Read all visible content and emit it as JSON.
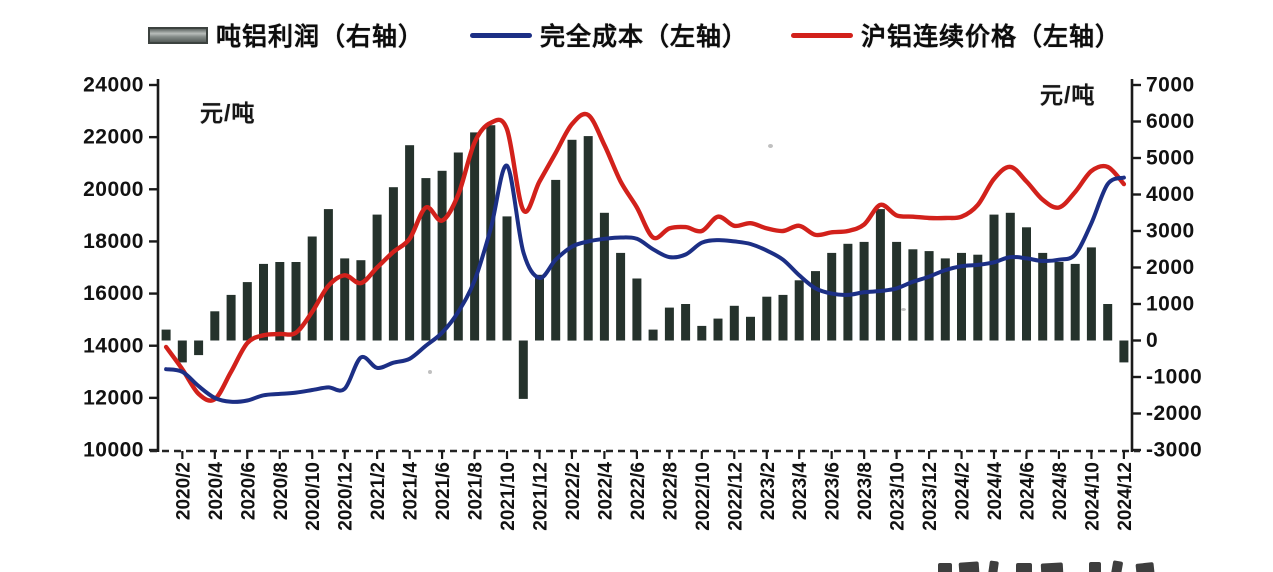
{
  "legend": {
    "items": [
      {
        "label": "吨铝利润（右轴）",
        "type": "bar",
        "color": "#8f9693"
      },
      {
        "label": "完全成本（左轴）",
        "type": "line",
        "color": "#1c2f85"
      },
      {
        "label": "沪铝连续价格（左轴）",
        "type": "line",
        "color": "#d2211b"
      }
    ]
  },
  "chart_data": {
    "type": "bar",
    "subtype": "combo-bar-and-two-lines",
    "title": "",
    "legend_position": "top",
    "grid": false,
    "x": [
      "2020/1",
      "2020/2",
      "2020/3",
      "2020/4",
      "2020/5",
      "2020/6",
      "2020/7",
      "2020/8",
      "2020/9",
      "2020/10",
      "2020/11",
      "2020/12",
      "2021/1",
      "2021/2",
      "2021/3",
      "2021/4",
      "2021/5",
      "2021/6",
      "2021/7",
      "2021/8",
      "2021/9",
      "2021/10",
      "2021/11",
      "2021/12",
      "2022/1",
      "2022/2",
      "2022/3",
      "2022/4",
      "2022/5",
      "2022/6",
      "2022/7",
      "2022/8",
      "2022/9",
      "2022/10",
      "2022/11",
      "2022/12",
      "2023/1",
      "2023/2",
      "2023/3",
      "2023/4",
      "2023/5",
      "2023/6",
      "2023/7",
      "2023/8",
      "2023/9",
      "2023/10",
      "2023/11",
      "2023/12",
      "2024/1",
      "2024/2",
      "2024/3",
      "2024/4",
      "2024/5",
      "2024/6",
      "2024/7",
      "2024/8",
      "2024/9",
      "2024/10",
      "2024/11",
      "2024/12"
    ],
    "x_tick_labels": [
      "2020/2",
      "2020/4",
      "2020/6",
      "2020/8",
      "2020/10",
      "2020/12",
      "2021/2",
      "2021/4",
      "2021/6",
      "2021/8",
      "2021/10",
      "2021/12",
      "2022/2",
      "2022/4",
      "2022/6",
      "2022/8",
      "2022/10",
      "2022/12",
      "2023/2",
      "2023/4",
      "2023/6",
      "2023/8",
      "2023/10",
      "2023/12",
      "2024/2",
      "2024/4",
      "2024/6",
      "2024/8",
      "2024/10",
      "2024/12"
    ],
    "left_axis": {
      "unit": "元/吨",
      "min": 10000,
      "max": 24000,
      "tick_step": 2000,
      "ticks": [
        24000,
        22000,
        20000,
        18000,
        16000,
        14000,
        12000,
        10000
      ]
    },
    "right_axis": {
      "unit": "元/吨",
      "min": -3000,
      "max": 7000,
      "tick_step": 1000,
      "ticks": [
        7000,
        6000,
        5000,
        4000,
        3000,
        2000,
        1000,
        0,
        -1000,
        -2000,
        -3000
      ]
    },
    "series": [
      {
        "name": "吨铝利润（右轴）",
        "type": "bar",
        "axis": "right",
        "color": "#25322c",
        "values": [
          300,
          -600,
          -400,
          800,
          1250,
          1600,
          2100,
          2150,
          2150,
          2850,
          3600,
          2250,
          2200,
          3450,
          4200,
          5350,
          4450,
          4650,
          5150,
          5700,
          5900,
          3400,
          -1600,
          1800,
          4400,
          5500,
          5600,
          3500,
          2400,
          1700,
          300,
          900,
          1000,
          400,
          600,
          950,
          650,
          1200,
          1250,
          1650,
          1900,
          2400,
          2650,
          2700,
          3600,
          2700,
          2500,
          2450,
          2250,
          2400,
          2350,
          3450,
          3500,
          3100,
          2400,
          2150,
          2100,
          2550,
          1000,
          -600
        ]
      },
      {
        "name": "完全成本（左轴）",
        "type": "line",
        "axis": "left",
        "color": "#1c2f85",
        "values": [
          13100,
          13000,
          12450,
          12000,
          11850,
          11900,
          12100,
          12150,
          12200,
          12300,
          12400,
          12350,
          13550,
          13150,
          13350,
          13500,
          14000,
          14500,
          15300,
          16500,
          18500,
          20900,
          17600,
          16600,
          17300,
          17800,
          18000,
          18100,
          18150,
          18100,
          17700,
          17400,
          17500,
          17950,
          18050,
          18000,
          17900,
          17650,
          17300,
          16700,
          16200,
          16000,
          15950,
          16050,
          16100,
          16200,
          16450,
          16650,
          16900,
          17050,
          17100,
          17200,
          17400,
          17350,
          17250,
          17300,
          17500,
          18700,
          20200,
          20450
        ]
      },
      {
        "name": "沪铝连续价格（左轴）",
        "type": "line",
        "axis": "left",
        "color": "#d2211b",
        "values": [
          13950,
          13100,
          12150,
          11950,
          13000,
          14100,
          14400,
          14450,
          14500,
          15300,
          16300,
          16700,
          16400,
          17000,
          17600,
          18100,
          19300,
          18800,
          19800,
          21800,
          22550,
          22300,
          19200,
          20300,
          21400,
          22500,
          22850,
          21700,
          20300,
          19300,
          18150,
          18500,
          18550,
          18400,
          18950,
          18600,
          18700,
          18500,
          18400,
          18600,
          18250,
          18350,
          18400,
          18650,
          19400,
          19000,
          18950,
          18900,
          18900,
          18950,
          19400,
          20400,
          20860,
          20300,
          19600,
          19300,
          19900,
          20700,
          20860,
          20200
        ]
      }
    ]
  }
}
